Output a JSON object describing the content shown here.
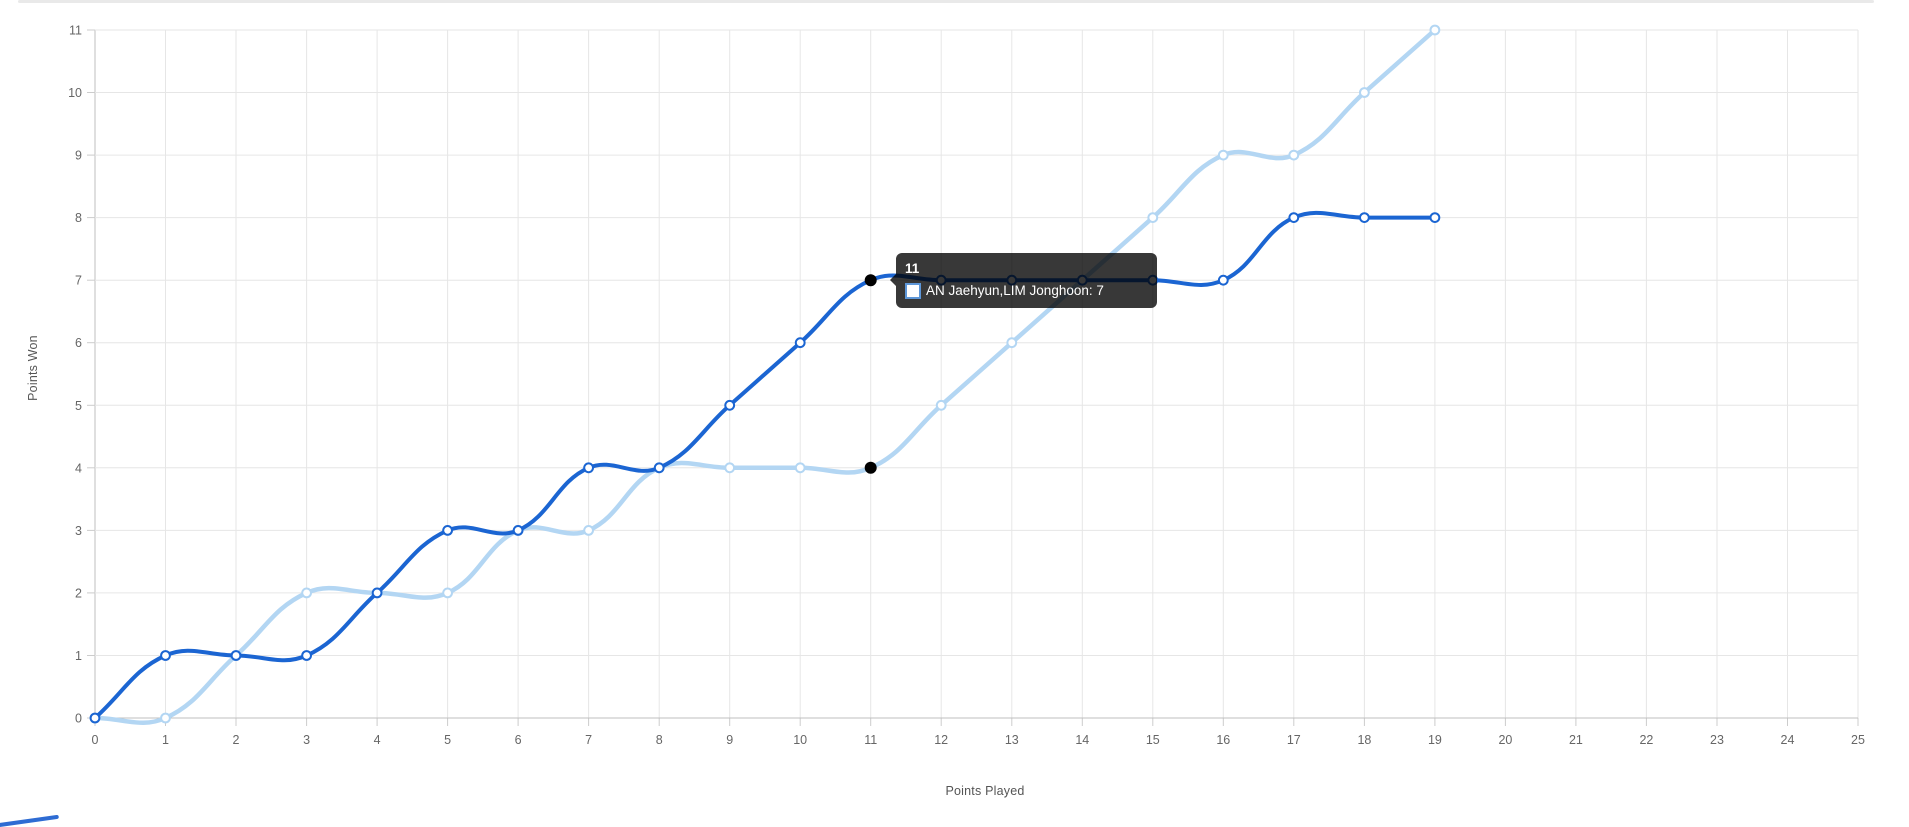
{
  "chart_data": {
    "type": "line",
    "title": "",
    "xlabel": "Points Played",
    "ylabel": "Points Won",
    "x": [
      0,
      1,
      2,
      3,
      4,
      5,
      6,
      7,
      8,
      9,
      10,
      11,
      12,
      13,
      14,
      15,
      16,
      17,
      18,
      19
    ],
    "series": [
      {
        "name": "AN Jaehyun,LIM Jonghoon",
        "color": "#1b65d2",
        "point_fill": "#ffffff",
        "values": [
          0,
          1,
          1,
          1,
          2,
          3,
          3,
          4,
          4,
          5,
          6,
          7,
          7,
          7,
          7,
          7,
          7,
          8,
          8,
          8
        ]
      },
      {
        "name": "",
        "color": "#b3d6f3",
        "point_fill": "#ffffff",
        "values": [
          0,
          0,
          1,
          2,
          2,
          2,
          3,
          3,
          4,
          4,
          4,
          4,
          5,
          6,
          7,
          8,
          9,
          9,
          10,
          11
        ]
      }
    ],
    "xlim": [
      0,
      25
    ],
    "ylim": [
      0,
      11
    ],
    "x_ticks": [
      0,
      1,
      2,
      3,
      4,
      5,
      6,
      7,
      8,
      9,
      10,
      11,
      12,
      13,
      14,
      15,
      16,
      17,
      18,
      19,
      20,
      21,
      22,
      23,
      24,
      25
    ],
    "y_ticks": [
      0,
      1,
      2,
      3,
      4,
      5,
      6,
      7,
      8,
      9,
      10,
      11
    ],
    "grid": true,
    "legend_position": "none",
    "curve_tension": 0.4,
    "hover": {
      "x": 11,
      "point_color": "#000000",
      "values": [
        7,
        4
      ]
    }
  },
  "tooltip": {
    "title": "11",
    "series_name": "AN Jaehyun,LIM Jonghoon",
    "value": "7",
    "row_text": "AN Jaehyun,LIM Jonghoon: 7",
    "bg_color": "rgba(0,0,0,0.78)",
    "swatch_border": "#5e97d8",
    "swatch_fill": "#ffffff"
  },
  "styles": {
    "background": "#ffffff",
    "grid_color": "#e6e6e6",
    "zero_line_color": "#bfbfbf",
    "tick_text_color": "#666666",
    "axis_title_color": "#555555",
    "top_border_color": "#e9e9e9",
    "accent_color": "#2e6cd3",
    "dark_series_color": "#1b65d2",
    "light_series_color": "#b3d6f3"
  }
}
